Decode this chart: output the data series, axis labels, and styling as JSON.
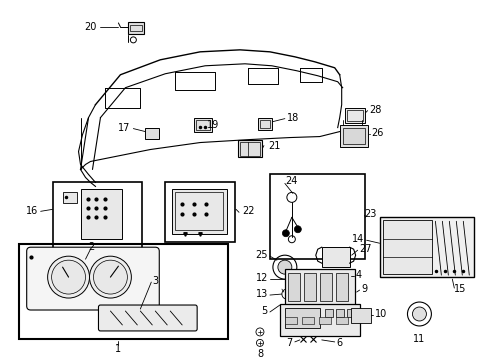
{
  "bg_color": "#ffffff",
  "line_color": "#000000",
  "fig_width": 4.89,
  "fig_height": 3.6,
  "dpi": 100,
  "font_size": 7.0
}
